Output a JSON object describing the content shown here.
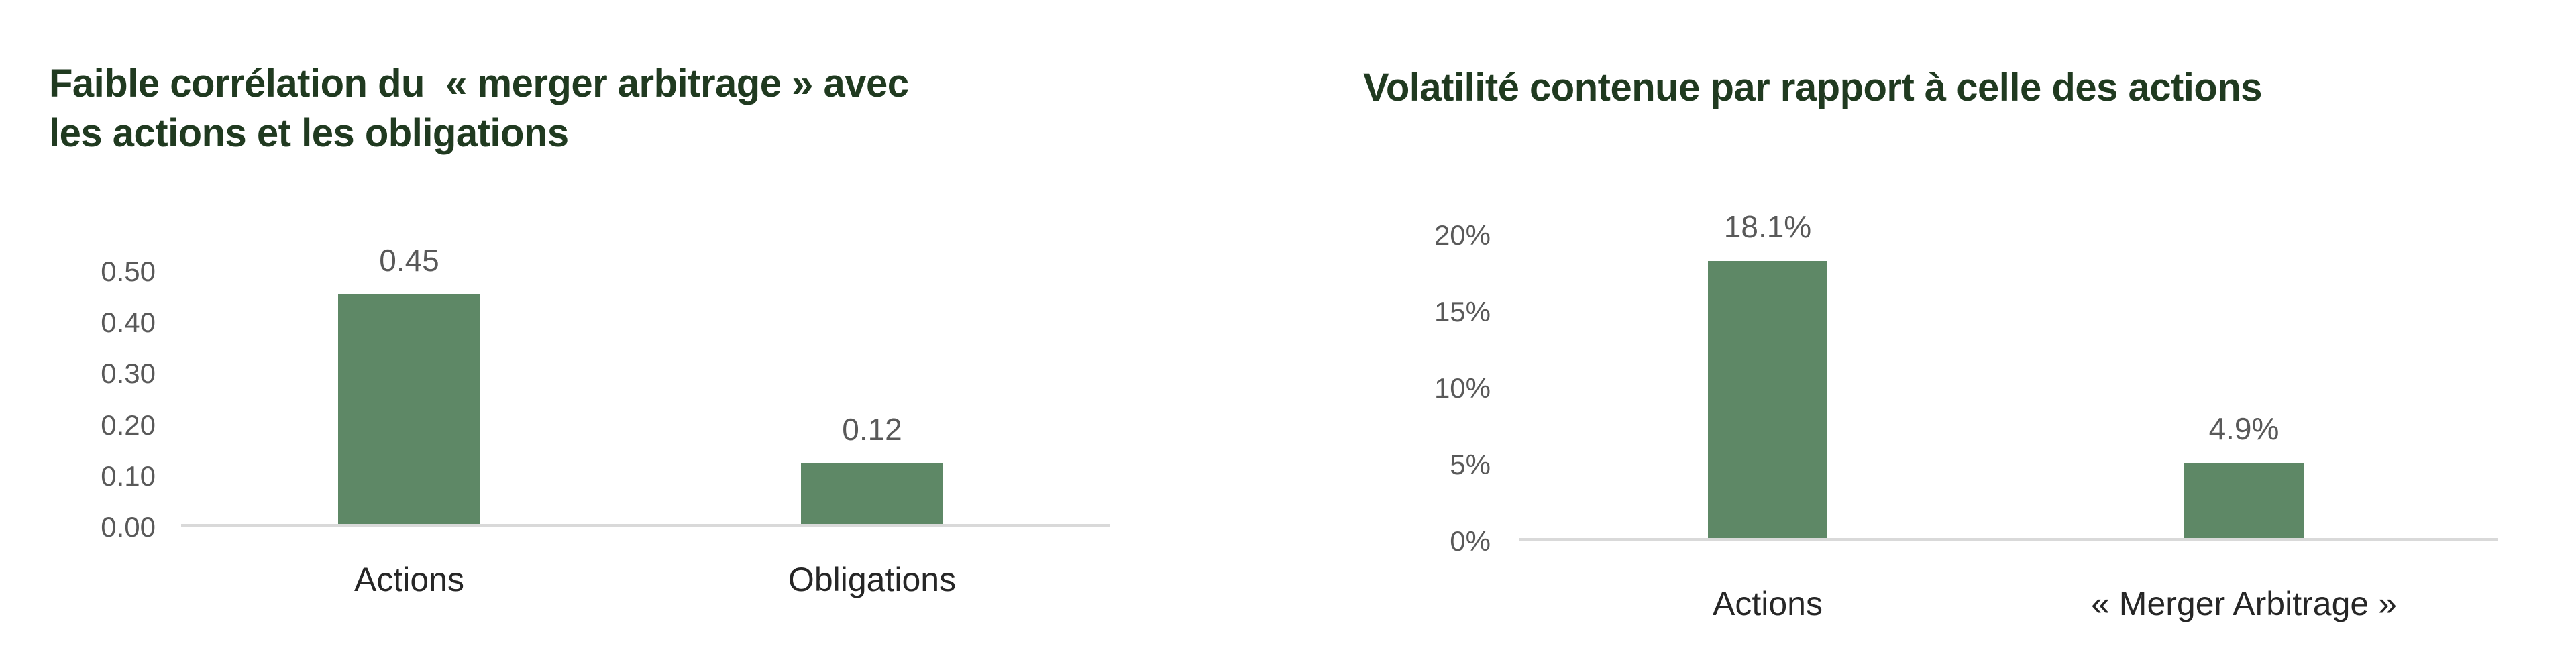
{
  "page": {
    "background": "#ffffff"
  },
  "styles": {
    "title_color": "#203A20",
    "bar_color": "#5E8866",
    "tick_label_color": "#595959",
    "value_label_color": "#595959",
    "category_label_color": "#262626",
    "axis_line_color": "#D9D9D9"
  },
  "chart_data": [
    {
      "type": "bar",
      "title": "Faible corrélation du « merger arbitrage » avec les actions et les obligations",
      "title_lines": [
        "Faible corrélation du  « merger arbitrage » avec",
        "les actions et les obligations"
      ],
      "categories": [
        "Actions",
        "Obligations"
      ],
      "values": [
        0.45,
        0.12
      ],
      "value_labels": [
        "0.45",
        "0.12"
      ],
      "xlabel": "",
      "ylabel": "",
      "ylim": [
        0,
        0.5
      ],
      "yticks": [
        0,
        0.1,
        0.2,
        0.3,
        0.4,
        0.5
      ],
      "ytick_labels": [
        "0.00",
        "0.10",
        "0.20",
        "0.30",
        "0.40",
        "0.50"
      ],
      "grid": false,
      "legend": "none"
    },
    {
      "type": "bar",
      "title": "Volatilité contenue par rapport à celle des actions",
      "title_lines": [
        "Volatilité contenue par rapport à celle des actions"
      ],
      "categories": [
        "Actions",
        "« Merger Arbitrage »"
      ],
      "values": [
        18.1,
        4.9
      ],
      "value_labels": [
        "18.1%",
        "4.9%"
      ],
      "xlabel": "",
      "ylabel": "",
      "ylim": [
        0,
        20
      ],
      "yticks": [
        0,
        5,
        10,
        15,
        20
      ],
      "ytick_labels": [
        "0%",
        "5%",
        "10%",
        "15%",
        "20%"
      ],
      "grid": false,
      "legend": "none"
    }
  ]
}
